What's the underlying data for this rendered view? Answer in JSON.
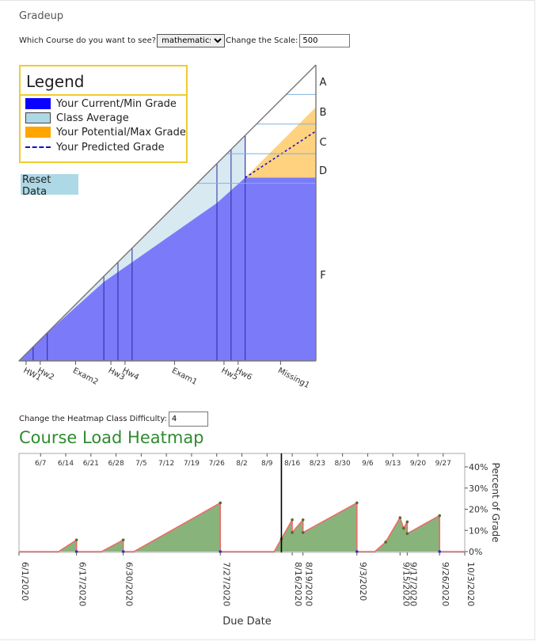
{
  "app": {
    "title": "Gradeup"
  },
  "course_selector": {
    "label": "Which Course do you want to see?",
    "value": "mathematics",
    "options": [
      "mathematics"
    ]
  },
  "scale": {
    "label": "Change the Scale:",
    "value": "500"
  },
  "legend": {
    "title": "Legend",
    "items": [
      {
        "label": "Your Current/Min Grade",
        "swatch": "current",
        "color": "#0a00ff"
      },
      {
        "label": "Class Average",
        "swatch": "avg",
        "color": "#add8e6"
      },
      {
        "label": "Your Potential/Max Grade",
        "swatch": "max",
        "color": "#ffa500"
      },
      {
        "label": "Your Predicted Grade",
        "swatch": "pred",
        "color": "#1010c8"
      }
    ]
  },
  "reset_button": {
    "label": "Reset Data"
  },
  "heatmap_controls": {
    "label": "Change the Heatmap Class Difficulty:",
    "value": "4"
  },
  "heatmap_title": "Course Load Heatmap",
  "chart_data": [
    {
      "type": "area",
      "title": "",
      "letter_grades": [
        "A",
        "B",
        "C",
        "D",
        "F"
      ],
      "assignments": [
        "HW1",
        "Hw2",
        "Exam2",
        "Hw3",
        "Hw4",
        "Exam1",
        "Hw5",
        "Hw6",
        "Missing1"
      ],
      "cumulative_points_possible": [
        0,
        10,
        20,
        60,
        70,
        80,
        140,
        150,
        160,
        210
      ],
      "series": [
        {
          "name": "Your Current/Min Grade",
          "values": [
            0,
            10,
            20,
            56,
            63,
            70,
            112,
            121,
            130,
            130
          ]
        },
        {
          "name": "Class Average",
          "values": [
            0,
            10,
            20,
            60,
            70,
            80,
            140,
            150,
            160,
            160
          ]
        },
        {
          "name": "Your Potential/Max Grade",
          "values": [
            0,
            10,
            20,
            56,
            63,
            70,
            112,
            121,
            130,
            180
          ]
        },
        {
          "name": "Your Predicted Grade",
          "values": [
            0,
            10,
            20,
            56,
            63,
            70,
            112,
            121,
            130,
            163
          ]
        }
      ],
      "grade_cutoffs": [
        {
          "grade": "A",
          "fraction": 0.9
        },
        {
          "grade": "B",
          "fraction": 0.8
        },
        {
          "grade": "C",
          "fraction": 0.7
        },
        {
          "grade": "D",
          "fraction": 0.6
        }
      ]
    },
    {
      "type": "area",
      "title": "Course Load Heatmap",
      "xlabel": "Due Date",
      "ylabel": "Percent of Grade",
      "x_top_ticks": [
        "6/7",
        "6/14",
        "6/21",
        "6/28",
        "7/5",
        "7/12",
        "7/19",
        "7/26",
        "8/2",
        "8/9",
        "8/16",
        "8/23",
        "8/30",
        "9/6",
        "9/13",
        "9/20",
        "9/27"
      ],
      "x_bottom_ticks": [
        "6/1/2020",
        "6/17/2020",
        "6/30/2020",
        "7/27/2020",
        "8/16/2020",
        "8/19/2020",
        "9/3/2020",
        "9/15/2020",
        "9/17/2020",
        "9/26/2020",
        "10/3/2020"
      ],
      "y_ticks": [
        "40%",
        "30%",
        "20%",
        "10%",
        "0%"
      ],
      "ylim": [
        0,
        40
      ],
      "current_date": "8/13/2020",
      "points": [
        {
          "date": "6/12/2020",
          "value": 0
        },
        {
          "date": "6/17/2020",
          "value": 5.5
        },
        {
          "date": "6/17/2020",
          "value": 0
        },
        {
          "date": "6/24/2020",
          "value": 0
        },
        {
          "date": "6/30/2020",
          "value": 5.5
        },
        {
          "date": "6/30/2020",
          "value": 0
        },
        {
          "date": "7/3/2020",
          "value": 0
        },
        {
          "date": "7/27/2020",
          "value": 23
        },
        {
          "date": "7/27/2020",
          "value": 0
        },
        {
          "date": "8/11/2020",
          "value": 0
        },
        {
          "date": "8/13/2020",
          "value": 6
        },
        {
          "date": "8/16/2020",
          "value": 15
        },
        {
          "date": "8/16/2020",
          "value": 9
        },
        {
          "date": "8/19/2020",
          "value": 15
        },
        {
          "date": "8/19/2020",
          "value": 9
        },
        {
          "date": "9/3/2020",
          "value": 23
        },
        {
          "date": "9/3/2020",
          "value": 0
        },
        {
          "date": "9/8/2020",
          "value": 0
        },
        {
          "date": "9/11/2020",
          "value": 4.5
        },
        {
          "date": "9/15/2020",
          "value": 16
        },
        {
          "date": "9/16/2020",
          "value": 11
        },
        {
          "date": "9/17/2020",
          "value": 14
        },
        {
          "date": "9/17/2020",
          "value": 8.5
        },
        {
          "date": "9/26/2020",
          "value": 17
        },
        {
          "date": "9/26/2020",
          "value": 0
        },
        {
          "date": "10/3/2020",
          "value": 0
        }
      ]
    }
  ]
}
